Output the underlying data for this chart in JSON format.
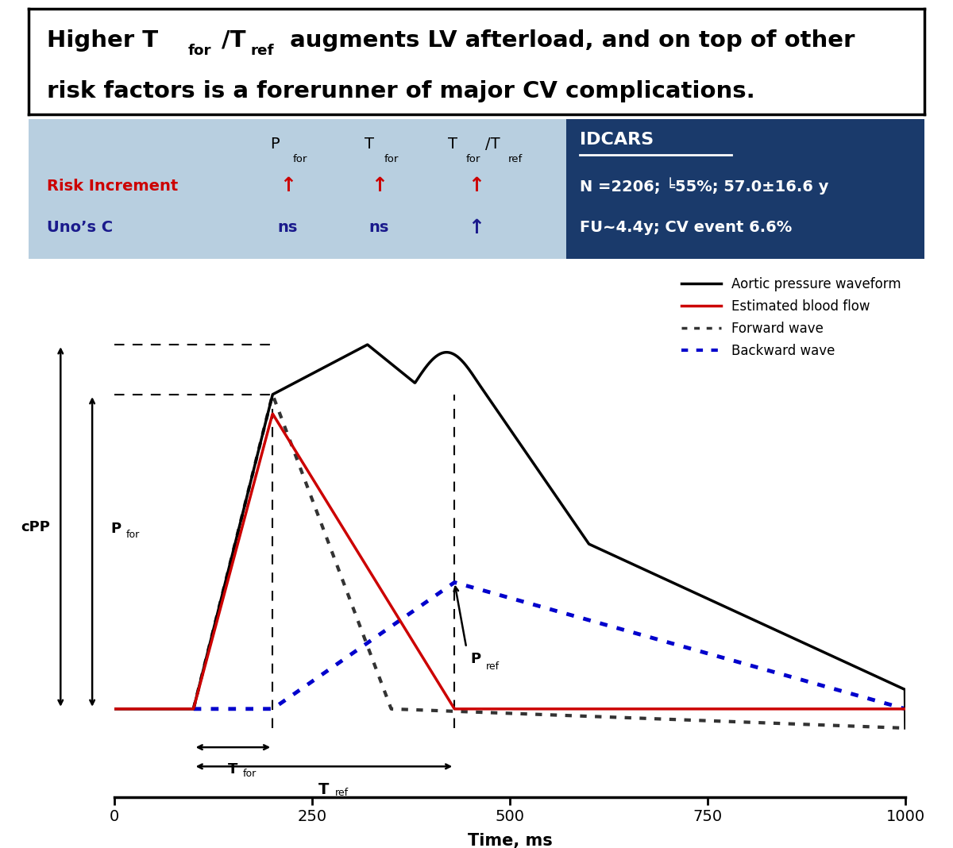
{
  "title_line1a": "Higher T",
  "title_line1b": "for",
  "title_line1c": "/T",
  "title_line1d": "ref",
  "title_line1e": " augments LV afterload, and on top of other",
  "title_line2": "risk factors is a forerunner of major CV complications.",
  "table_bg": "#b8cfe0",
  "table_dark_bg": "#1a3a6b",
  "idcars_text": "IDCARS",
  "idcars_line1": "N =2206; ╘55%; 57.0±16.6 y",
  "idcars_line2": "FU~4.4y; CV event 6.6%",
  "row_header1": "Risk Increment",
  "row_header1_color": "#cc0000",
  "row_header2": "Uno’s C",
  "row_header2_color": "#1a1a8c",
  "ns_text": "ns",
  "up_arrow": "↑",
  "xlabel": "Time, ms",
  "xlim": [
    0,
    1000
  ],
  "xticks": [
    0,
    250,
    500,
    750,
    1000
  ],
  "figsize": [
    12.0,
    10.68
  ],
  "dpi": 100,
  "aortic_color": "#000000",
  "forward_color": "#333333",
  "blood_flow_color": "#cc0000",
  "backward_color": "#0000cc",
  "legend_labels": [
    "Aortic pressure waveform",
    "Estimated blood flow",
    "Forward wave",
    "Backward wave"
  ]
}
